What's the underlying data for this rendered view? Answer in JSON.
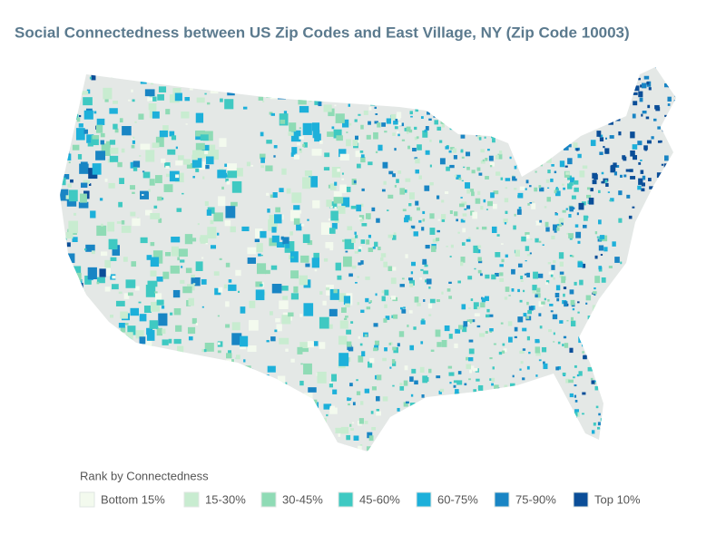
{
  "title": "Social Connectedness between US Zip Codes and East Village, NY (Zip Code 10003)",
  "legend": {
    "title": "Rank by Connectedness",
    "items": [
      {
        "label": "Bottom 15%",
        "color": "#f3faee"
      },
      {
        "label": "15-30%",
        "color": "#c8ecd0"
      },
      {
        "label": "30-45%",
        "color": "#8fdbb5"
      },
      {
        "label": "45-60%",
        "color": "#3fc9c2"
      },
      {
        "label": "60-75%",
        "color": "#1db0da"
      },
      {
        "label": "75-90%",
        "color": "#1985c4"
      },
      {
        "label": "Top 10%",
        "color": "#0b4e98"
      }
    ]
  }
}
